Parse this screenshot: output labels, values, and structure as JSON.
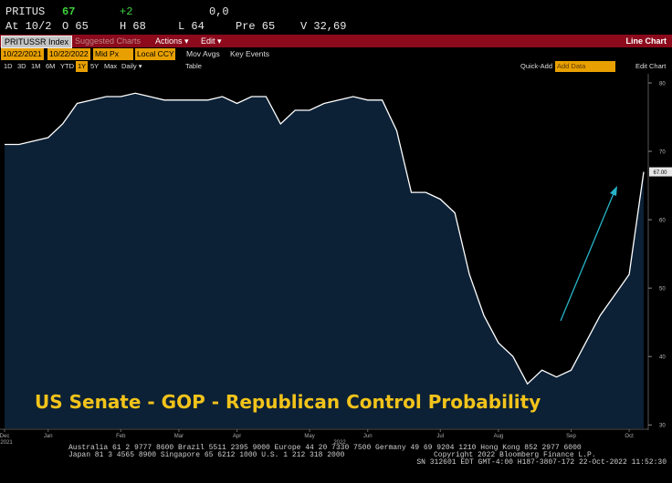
{
  "header": {
    "ticker": "PRITUS",
    "last": "67",
    "change": "+2",
    "volume_short": "0,0",
    "at": "At 10/2",
    "open": "O 65",
    "high": "H 68",
    "low": "L 64",
    "pre": "Pre 65",
    "volume": "V 32,69"
  },
  "menu": {
    "security": "PRITUSSR Index",
    "suggested": "Suggested Charts",
    "actions": "Actions ▾",
    "edit": "Edit ▾",
    "view": "Line Chart"
  },
  "toolbar": {
    "start": "10/22/2021",
    "end": "10/22/2022",
    "price": "Mid Px",
    "currency": "Local CCY",
    "mov_avgs": "Mov Avgs",
    "key_events": "Key Events",
    "ranges": [
      "1D",
      "3D",
      "1M",
      "6M",
      "YTD",
      "1Y",
      "5Y",
      "Max"
    ],
    "period": "Daily ▾",
    "table": "Table",
    "quick_add": "Quick-Add",
    "add_data": "Add Data",
    "edit_chart": "Edit Chart"
  },
  "chart_data": {
    "type": "line",
    "title": "US Senate - GOP - Republican Control Probability",
    "categories": [
      "Dec",
      null,
      null,
      "Jan",
      null,
      null,
      null,
      null,
      "Feb",
      null,
      null,
      null,
      "Mar",
      null,
      null,
      null,
      "Apr",
      null,
      null,
      null,
      null,
      "May",
      null,
      null,
      null,
      "Jun",
      null,
      null,
      null,
      null,
      "Jul",
      null,
      null,
      null,
      "Aug",
      null,
      null,
      null,
      null,
      "Sep",
      null,
      null,
      null,
      "Oct",
      null
    ],
    "year_labels": [
      "2021",
      "2022"
    ],
    "values": [
      71,
      71,
      71.5,
      72,
      74,
      77,
      77.5,
      78,
      78,
      78.5,
      78,
      77.5,
      77.5,
      77.5,
      77.5,
      78,
      77,
      78,
      78,
      74,
      76,
      76,
      77,
      77.5,
      78,
      77.5,
      77.5,
      73,
      64,
      64,
      63,
      61,
      52,
      46,
      42,
      40,
      36,
      38,
      37,
      38,
      42,
      46,
      49,
      52,
      67
    ],
    "last_value_label": "67.00",
    "color": "#ffffff",
    "area_color": "#0c2136",
    "annotation_color": "#f2c31a",
    "ylim": [
      29.5,
      80.8
    ],
    "yticks": [
      30,
      40,
      50,
      60,
      70,
      80
    ],
    "grid": false
  },
  "footer": {
    "line1": "Australia 61 2 9777 8600 Brazil 5511 2395 9000 Europe 44 20 7330 7500 Germany 49 69 9204 1210 Hong Kong 852 2977 6000",
    "line2": "Japan 81 3 4565 8900 Singapore 65 6212 1000 U.S. 1 212 318 2000",
    "copyright": "Copyright 2022 Bloomberg Finance L.P.",
    "line3": "SN 312601 EDT GMT-4:00 H187-3807-172 22-Oct-2022 11:52:30"
  }
}
